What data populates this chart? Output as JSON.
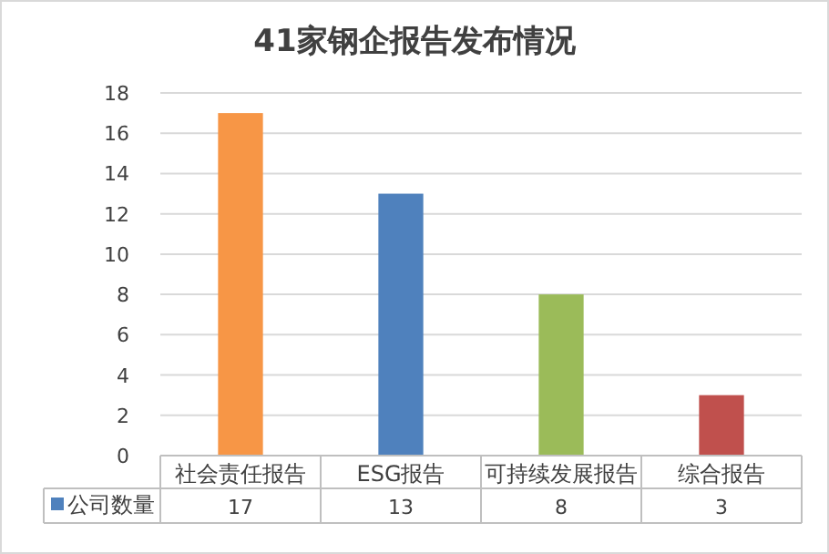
{
  "chart_data": {
    "type": "bar",
    "title": "41家钢企报告发布情况",
    "categories": [
      "社会责任报告",
      "ESG报告",
      "可持续发展报告",
      "综合报告"
    ],
    "series": [
      {
        "name": "公司数量",
        "color": "#4f81bd",
        "colors": [
          "#f79646",
          "#4f81bd",
          "#9bbb59",
          "#c0504d"
        ],
        "values": [
          17,
          13,
          8,
          3
        ]
      }
    ],
    "ylim": [
      0,
      18
    ],
    "yticks": [
      0,
      2,
      4,
      6,
      8,
      10,
      12,
      14,
      16,
      18
    ],
    "grid": "y",
    "data_labels": true,
    "legend": "bottom"
  }
}
